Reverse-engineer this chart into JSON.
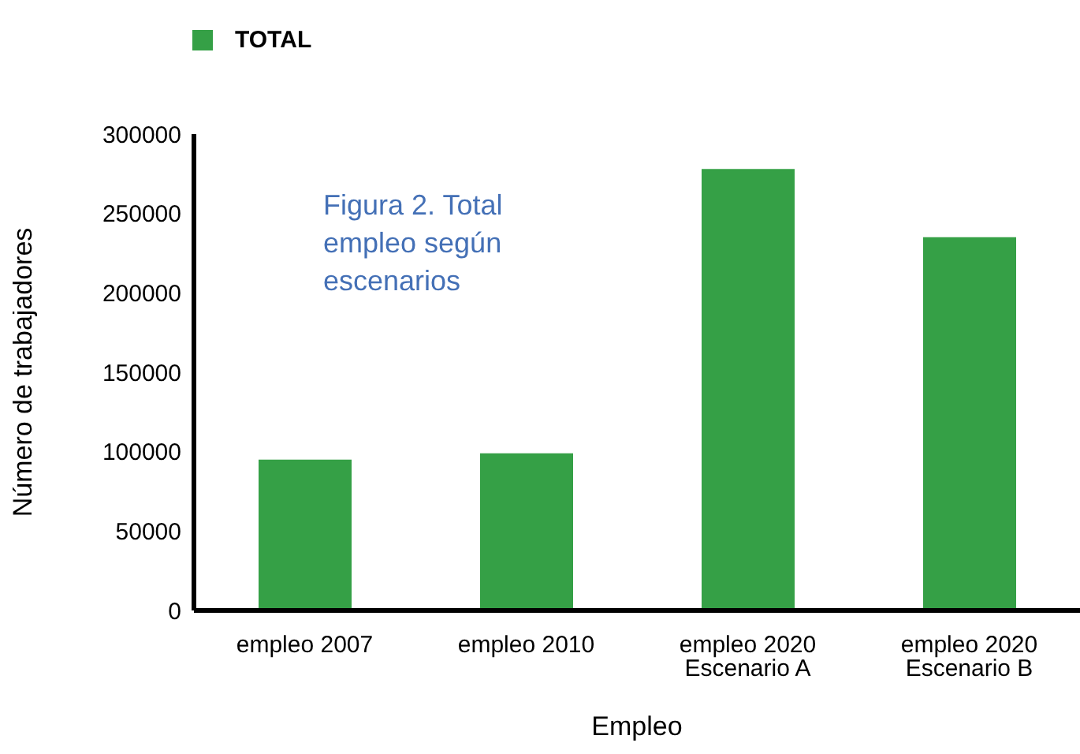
{
  "chart_data": {
    "type": "bar",
    "xlabel": "Empleo",
    "ylabel": "Número de trabajadores",
    "categories": [
      "empleo 2007",
      "empleo 2010",
      "empleo 2020 Escenario A",
      "empleo 2020 Escenario B"
    ],
    "series": [
      {
        "name": "TOTAL",
        "color": "#35a046",
        "values": [
          95000,
          99000,
          278000,
          235000
        ]
      }
    ],
    "ylim": [
      0,
      300000
    ],
    "yticks": [
      0,
      50000,
      100000,
      150000,
      200000,
      250000,
      300000
    ],
    "grid": false,
    "legend": "top left",
    "annotations": [
      "Figura 2. Total empleo según escenarios"
    ]
  }
}
